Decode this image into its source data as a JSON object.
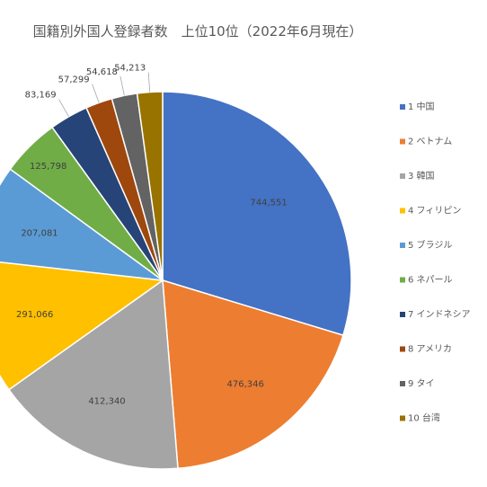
{
  "chart_data": {
    "type": "pie",
    "title": "国籍別外国人登録者数　上位10位（2022年6月現在）",
    "legend_position": "right",
    "slices": [
      {
        "name": "1 中国",
        "value": 744551,
        "label": "744,551",
        "color": "#4472C4"
      },
      {
        "name": "2 ベトナム",
        "value": 476346,
        "label": "476,346",
        "color": "#ED7D31"
      },
      {
        "name": "3 韓国",
        "value": 412340,
        "label": "412,340",
        "color": "#A5A5A5"
      },
      {
        "name": "4 フィリピン",
        "value": 291066,
        "label": "291,066",
        "color": "#FFC000"
      },
      {
        "name": "5 ブラジル",
        "value": 207081,
        "label": "207,081",
        "color": "#5B9BD5"
      },
      {
        "name": "6 ネパール",
        "value": 125798,
        "label": "125,798",
        "color": "#70AD47"
      },
      {
        "name": "7 インドネシア",
        "value": 83169,
        "label": "83,169",
        "color": "#264478"
      },
      {
        "name": "8 アメリカ",
        "value": 57299,
        "label": "57,299",
        "color": "#9E480E"
      },
      {
        "name": "9 タイ",
        "value": 54618,
        "label": "54,618",
        "color": "#636363"
      },
      {
        "name": "10 台湾",
        "value": 54213,
        "label": "54,213",
        "color": "#997300"
      }
    ]
  }
}
